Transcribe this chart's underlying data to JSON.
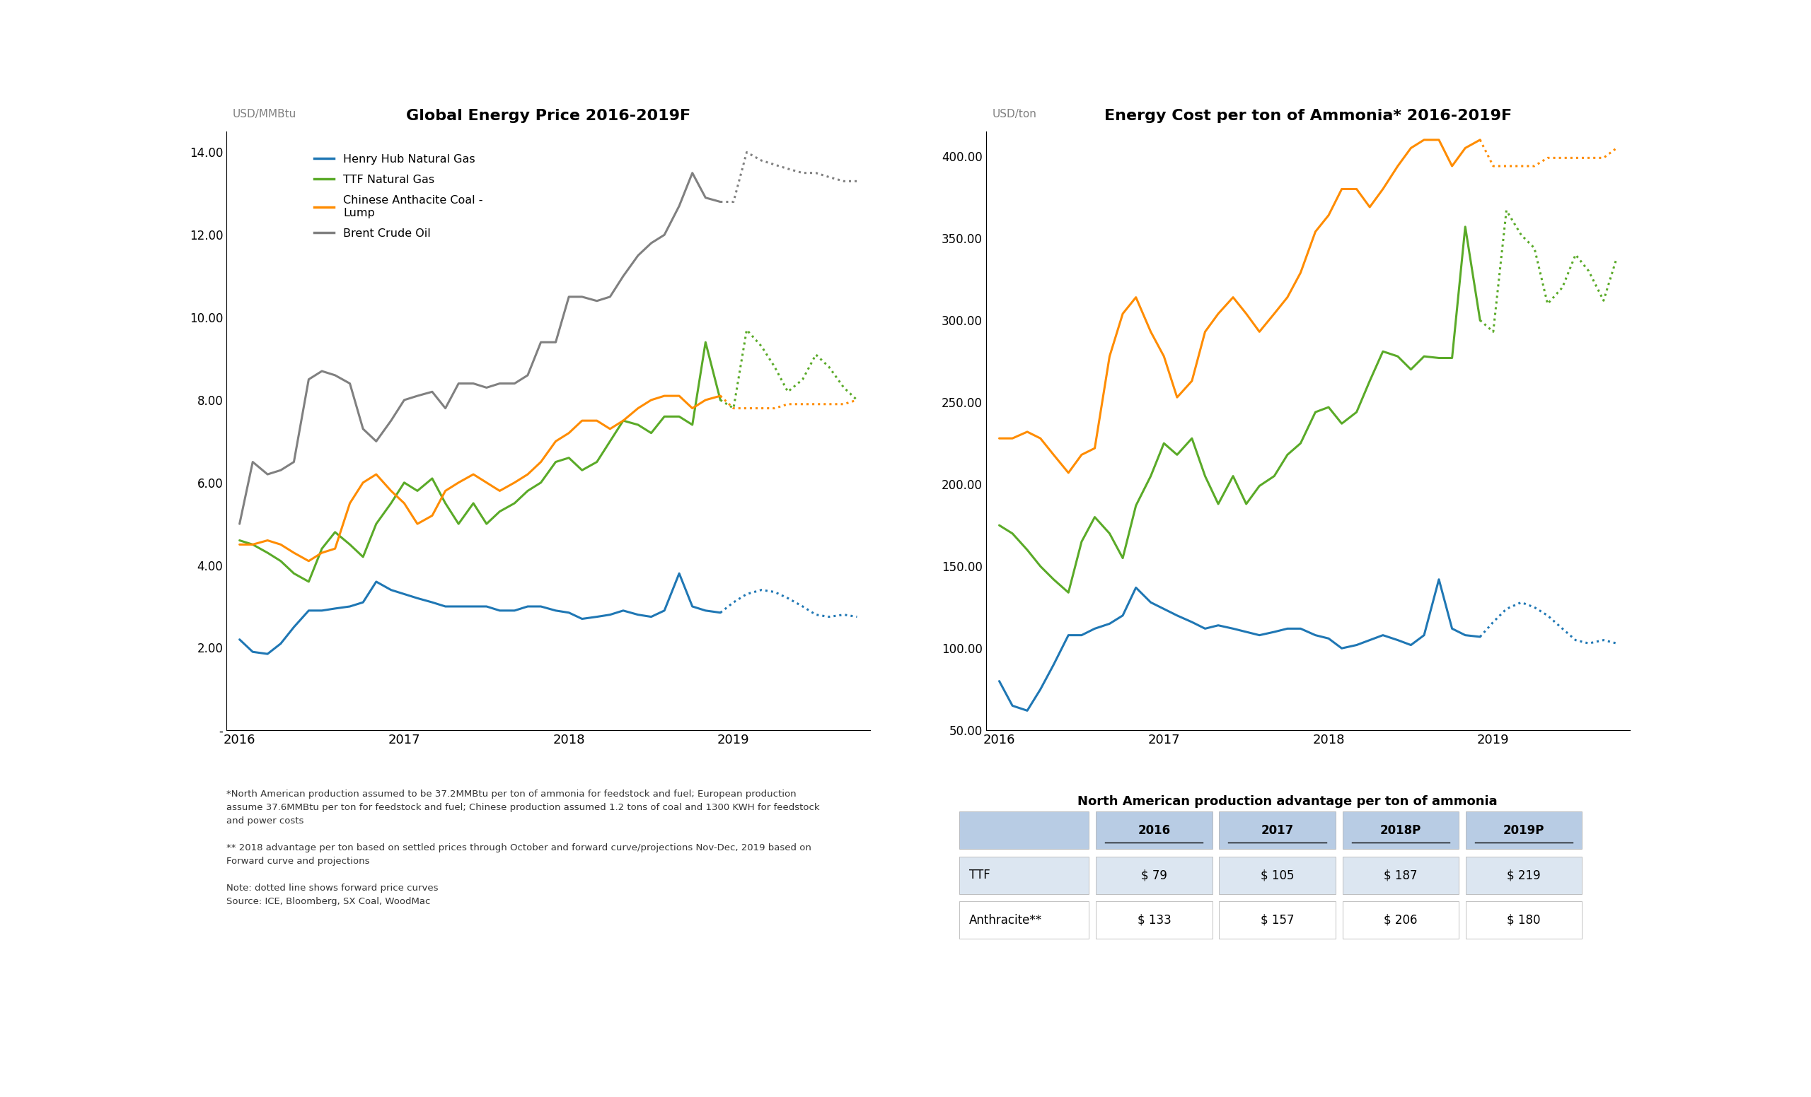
{
  "chart1_title": "Global Energy Price 2016-2019F",
  "chart1_ylabel": "USD/MMBtu",
  "chart1_ylim": [
    0,
    14.5
  ],
  "chart1_yticks": [
    0,
    2.0,
    4.0,
    6.0,
    8.0,
    10.0,
    12.0,
    14.0
  ],
  "chart1_ytick_labels": [
    "-",
    "2.00",
    "4.00",
    "6.00",
    "8.00",
    "10.00",
    "12.00",
    "14.00"
  ],
  "chart2_title": "Energy Cost per ton of Ammonia* 2016-2019F",
  "chart2_ylabel": "USD/ton",
  "chart2_ylim": [
    50,
    415
  ],
  "chart2_yticks": [
    50,
    100,
    150,
    200,
    250,
    300,
    350,
    400
  ],
  "chart2_ytick_labels": [
    "50.00",
    "100.00",
    "150.00",
    "200.00",
    "250.00",
    "300.00",
    "350.00",
    "400.00"
  ],
  "x_ticks": [
    2016,
    2017,
    2018,
    2019
  ],
  "henry_hub_solid": {
    "x": [
      2016.0,
      2016.08,
      2016.17,
      2016.25,
      2016.33,
      2016.42,
      2016.5,
      2016.58,
      2016.67,
      2016.75,
      2016.83,
      2016.92,
      2017.0,
      2017.08,
      2017.17,
      2017.25,
      2017.33,
      2017.42,
      2017.5,
      2017.58,
      2017.67,
      2017.75,
      2017.83,
      2017.92,
      2018.0,
      2018.08,
      2018.17,
      2018.25,
      2018.33,
      2018.42,
      2018.5,
      2018.58,
      2018.67,
      2018.75,
      2018.83,
      2018.92
    ],
    "y": [
      2.2,
      1.9,
      1.85,
      2.1,
      2.5,
      2.9,
      2.9,
      2.95,
      3.0,
      3.1,
      3.6,
      3.4,
      3.3,
      3.2,
      3.1,
      3.0,
      3.0,
      3.0,
      3.0,
      2.9,
      2.9,
      3.0,
      3.0,
      2.9,
      2.85,
      2.7,
      2.75,
      2.8,
      2.9,
      2.8,
      2.75,
      2.9,
      3.8,
      3.0,
      2.9,
      2.85
    ]
  },
  "henry_hub_dotted": {
    "x": [
      2018.92,
      2019.0,
      2019.08,
      2019.17,
      2019.25,
      2019.33,
      2019.42,
      2019.5,
      2019.58,
      2019.67,
      2019.75
    ],
    "y": [
      2.85,
      3.1,
      3.3,
      3.4,
      3.35,
      3.2,
      3.0,
      2.8,
      2.75,
      2.8,
      2.75
    ]
  },
  "ttf_solid": {
    "x": [
      2016.0,
      2016.08,
      2016.17,
      2016.25,
      2016.33,
      2016.42,
      2016.5,
      2016.58,
      2016.67,
      2016.75,
      2016.83,
      2016.92,
      2017.0,
      2017.08,
      2017.17,
      2017.25,
      2017.33,
      2017.42,
      2017.5,
      2017.58,
      2017.67,
      2017.75,
      2017.83,
      2017.92,
      2018.0,
      2018.08,
      2018.17,
      2018.25,
      2018.33,
      2018.42,
      2018.5,
      2018.58,
      2018.67,
      2018.75,
      2018.83,
      2018.92
    ],
    "y": [
      4.6,
      4.5,
      4.3,
      4.1,
      3.8,
      3.6,
      4.4,
      4.8,
      4.5,
      4.2,
      5.0,
      5.5,
      6.0,
      5.8,
      6.1,
      5.5,
      5.0,
      5.5,
      5.0,
      5.3,
      5.5,
      5.8,
      6.0,
      6.5,
      6.6,
      6.3,
      6.5,
      7.0,
      7.5,
      7.4,
      7.2,
      7.6,
      7.6,
      7.4,
      9.4,
      8.0
    ]
  },
  "ttf_dotted": {
    "x": [
      2018.92,
      2019.0,
      2019.08,
      2019.17,
      2019.25,
      2019.33,
      2019.42,
      2019.5,
      2019.58,
      2019.67,
      2019.75
    ],
    "y": [
      8.0,
      7.8,
      9.7,
      9.3,
      8.8,
      8.2,
      8.5,
      9.1,
      8.8,
      8.3,
      8.0
    ]
  },
  "coal_solid": {
    "x": [
      2016.0,
      2016.08,
      2016.17,
      2016.25,
      2016.33,
      2016.42,
      2016.5,
      2016.58,
      2016.67,
      2016.75,
      2016.83,
      2016.92,
      2017.0,
      2017.08,
      2017.17,
      2017.25,
      2017.33,
      2017.42,
      2017.5,
      2017.58,
      2017.67,
      2017.75,
      2017.83,
      2017.92,
      2018.0,
      2018.08,
      2018.17,
      2018.25,
      2018.33,
      2018.42,
      2018.5,
      2018.58,
      2018.67,
      2018.75,
      2018.83,
      2018.92
    ],
    "y": [
      4.5,
      4.5,
      4.6,
      4.5,
      4.3,
      4.1,
      4.3,
      4.4,
      5.5,
      6.0,
      6.2,
      5.8,
      5.5,
      5.0,
      5.2,
      5.8,
      6.0,
      6.2,
      6.0,
      5.8,
      6.0,
      6.2,
      6.5,
      7.0,
      7.2,
      7.5,
      7.5,
      7.3,
      7.5,
      7.8,
      8.0,
      8.1,
      8.1,
      7.8,
      8.0,
      8.1
    ]
  },
  "coal_dotted": {
    "x": [
      2018.92,
      2019.0,
      2019.08,
      2019.17,
      2019.25,
      2019.33,
      2019.42,
      2019.5,
      2019.58,
      2019.67,
      2019.75
    ],
    "y": [
      8.1,
      7.8,
      7.8,
      7.8,
      7.8,
      7.9,
      7.9,
      7.9,
      7.9,
      7.9,
      8.0
    ]
  },
  "brent_solid": {
    "x": [
      2016.0,
      2016.08,
      2016.17,
      2016.25,
      2016.33,
      2016.42,
      2016.5,
      2016.58,
      2016.67,
      2016.75,
      2016.83,
      2016.92,
      2017.0,
      2017.08,
      2017.17,
      2017.25,
      2017.33,
      2017.42,
      2017.5,
      2017.58,
      2017.67,
      2017.75,
      2017.83,
      2017.92,
      2018.0,
      2018.08,
      2018.17,
      2018.25,
      2018.33,
      2018.42,
      2018.5,
      2018.58,
      2018.67,
      2018.75,
      2018.83,
      2018.92
    ],
    "y": [
      5.0,
      6.5,
      6.2,
      6.3,
      6.5,
      8.5,
      8.7,
      8.6,
      8.4,
      7.3,
      7.0,
      7.5,
      8.0,
      8.1,
      8.2,
      7.8,
      8.4,
      8.4,
      8.3,
      8.4,
      8.4,
      8.6,
      9.4,
      9.4,
      10.5,
      10.5,
      10.4,
      10.5,
      11.0,
      11.5,
      11.8,
      12.0,
      12.7,
      13.5,
      12.9,
      12.8
    ]
  },
  "brent_dotted": {
    "x": [
      2018.92,
      2019.0,
      2019.08,
      2019.17,
      2019.25,
      2019.33,
      2019.42,
      2019.5,
      2019.58,
      2019.67,
      2019.75
    ],
    "y": [
      12.8,
      12.8,
      14.0,
      13.8,
      13.7,
      13.6,
      13.5,
      13.5,
      13.4,
      13.3,
      13.3
    ]
  },
  "ammonia_hh_solid": {
    "x": [
      2016.0,
      2016.08,
      2016.17,
      2016.25,
      2016.33,
      2016.42,
      2016.5,
      2016.58,
      2016.67,
      2016.75,
      2016.83,
      2016.92,
      2017.0,
      2017.08,
      2017.17,
      2017.25,
      2017.33,
      2017.42,
      2017.5,
      2017.58,
      2017.67,
      2017.75,
      2017.83,
      2017.92,
      2018.0,
      2018.08,
      2018.17,
      2018.25,
      2018.33,
      2018.42,
      2018.5,
      2018.58,
      2018.67,
      2018.75,
      2018.83,
      2018.92
    ],
    "y": [
      80,
      65,
      62,
      75,
      90,
      108,
      108,
      112,
      115,
      120,
      137,
      128,
      124,
      120,
      116,
      112,
      114,
      112,
      110,
      108,
      110,
      112,
      112,
      108,
      106,
      100,
      102,
      105,
      108,
      105,
      102,
      108,
      142,
      112,
      108,
      107
    ]
  },
  "ammonia_hh_dotted": {
    "x": [
      2018.92,
      2019.0,
      2019.08,
      2019.17,
      2019.25,
      2019.33,
      2019.42,
      2019.5,
      2019.58,
      2019.67,
      2019.75
    ],
    "y": [
      107,
      116,
      124,
      128,
      125,
      120,
      112,
      105,
      103,
      105,
      103
    ]
  },
  "ammonia_ttf_solid": {
    "x": [
      2016.0,
      2016.08,
      2016.17,
      2016.25,
      2016.33,
      2016.42,
      2016.5,
      2016.58,
      2016.67,
      2016.75,
      2016.83,
      2016.92,
      2017.0,
      2017.08,
      2017.17,
      2017.25,
      2017.33,
      2017.42,
      2017.5,
      2017.58,
      2017.67,
      2017.75,
      2017.83,
      2017.92,
      2018.0,
      2018.08,
      2018.17,
      2018.25,
      2018.33,
      2018.42,
      2018.5,
      2018.58,
      2018.67,
      2018.75,
      2018.83,
      2018.92
    ],
    "y": [
      175,
      170,
      160,
      150,
      142,
      134,
      165,
      180,
      170,
      155,
      187,
      205,
      225,
      218,
      228,
      205,
      188,
      205,
      188,
      199,
      205,
      218,
      225,
      244,
      247,
      237,
      244,
      263,
      281,
      278,
      270,
      278,
      277,
      277,
      357,
      300
    ]
  },
  "ammonia_ttf_dotted": {
    "x": [
      2018.92,
      2019.0,
      2019.08,
      2019.17,
      2019.25,
      2019.33,
      2019.42,
      2019.5,
      2019.58,
      2019.67,
      2019.75
    ],
    "y": [
      300,
      293,
      367,
      352,
      344,
      310,
      320,
      340,
      330,
      312,
      338
    ]
  },
  "ammonia_coal_solid": {
    "x": [
      2016.0,
      2016.08,
      2016.17,
      2016.25,
      2016.33,
      2016.42,
      2016.5,
      2016.58,
      2016.67,
      2016.75,
      2016.83,
      2016.92,
      2017.0,
      2017.08,
      2017.17,
      2017.25,
      2017.33,
      2017.42,
      2017.5,
      2017.58,
      2017.67,
      2017.75,
      2017.83,
      2017.92,
      2018.0,
      2018.08,
      2018.17,
      2018.25,
      2018.33,
      2018.42,
      2018.5,
      2018.58,
      2018.67,
      2018.75,
      2018.83,
      2018.92
    ],
    "y": [
      228,
      228,
      232,
      228,
      218,
      207,
      218,
      222,
      278,
      304,
      314,
      293,
      278,
      253,
      263,
      293,
      304,
      314,
      304,
      293,
      304,
      314,
      329,
      354,
      364,
      380,
      380,
      369,
      380,
      394,
      405,
      410,
      410,
      394,
      405,
      410
    ]
  },
  "ammonia_coal_dotted": {
    "x": [
      2018.92,
      2019.0,
      2019.08,
      2019.17,
      2019.25,
      2019.33,
      2019.42,
      2019.5,
      2019.58,
      2019.67,
      2019.75
    ],
    "y": [
      410,
      394,
      394,
      394,
      394,
      399,
      399,
      399,
      399,
      399,
      405
    ]
  },
  "colors": {
    "henry_hub": "#1f77b4",
    "ttf": "#5aaa28",
    "coal": "#ff8c00",
    "brent": "#808080"
  },
  "legend": [
    "Henry Hub Natural Gas",
    "TTF Natural Gas",
    "Chinese Anthacite Coal -\nLump",
    "Brent Crude Oil"
  ],
  "footnote1": "*North American production assumed to be 37.2MMBtu per ton of ammonia for feedstock and fuel; European production\nassume 37.6MMBtu per ton for feedstock and fuel; Chinese production assumed 1.2 tons of coal and 1300 KWH for feedstock\nand power costs",
  "footnote2": "** 2018 advantage per ton based on settled prices through October and forward curve/projections Nov-Dec, 2019 based on\nForward curve and projections",
  "footnote3": "Note: dotted line shows forward price curves",
  "footnote4": "Source: ICE, Bloomberg, SX Coal, WoodMac",
  "table_title": "North American production advantage per ton of ammonia",
  "table_headers": [
    "",
    "2016",
    "2017",
    "2018P",
    "2019P"
  ],
  "table_row1": [
    "TTF",
    "$ 79",
    "$ 105",
    "$ 187",
    "$ 219"
  ],
  "table_row2": [
    "Anthracite**",
    "$ 133",
    "$ 157",
    "$ 206",
    "$ 180"
  ],
  "table_header_bg": "#b8cce4",
  "table_row1_bg": "#dce6f1",
  "table_row2_bg": "#ffffff"
}
